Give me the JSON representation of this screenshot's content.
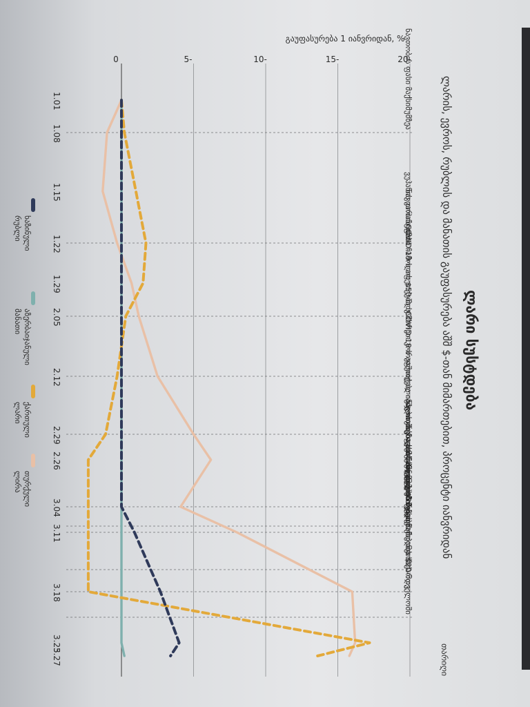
{
  "title": "ლარი სუსტდება",
  "subtitle": "ლარის, ევროს, რუბლის და მანათის გაუფასურება აშშ $-თან მიმართებით, პროცენტი იანვრიდან",
  "ylabel": "გაუფასურება 1 იანვრიდან, %",
  "xlabel": "თარიღი",
  "chart_data": {
    "type": "line",
    "orientation": "rotated-90-clockwise",
    "x": [
      "1.01",
      "1.08",
      "1.15",
      "1.22",
      "1.29",
      "2.05",
      "2.12",
      "2.29",
      "2.26",
      "3.04",
      "3.11",
      "3.18",
      "3.25",
      "3.27"
    ],
    "y_ticks": [
      0,
      5,
      10,
      15,
      20
    ],
    "y_tick_labels": [
      "0",
      "5-",
      "10-",
      "15-",
      "20-"
    ],
    "ylim": [
      0,
      20
    ],
    "grid": true,
    "legend_position": "bottom",
    "series": [
      {
        "name": "ხაზინული რუბლი",
        "color": "#2f3a5a",
        "style": "dashed",
        "values": [
          0,
          0,
          0,
          0,
          0,
          0,
          0,
          0,
          0,
          0,
          0.9,
          2.7,
          4.0,
          3.4
        ]
      },
      {
        "name": "აზერბაიჯანული მანათი",
        "color": "#7fb0ad",
        "style": "solid",
        "values": [
          0,
          0,
          0,
          0,
          0,
          0,
          0,
          0,
          0,
          0,
          0,
          0,
          0,
          0.2
        ]
      },
      {
        "name": "ქართული ლარი",
        "color": "#e3a93a",
        "style": "dashed",
        "values": [
          0,
          0.2,
          1.0,
          1.7,
          1.5,
          0.3,
          -0.3,
          -1.1,
          -2.3,
          -2.3,
          -2.3,
          -2.3,
          17.2,
          13.6
        ]
      },
      {
        "name": "თურქული ლირა",
        "color": "#e9c0a6",
        "style": "solid",
        "values": [
          0,
          -1.0,
          -1.3,
          -0.3,
          0.7,
          1.2,
          2.5,
          5.0,
          6.2,
          4.1,
          8.0,
          16.0,
          16.2,
          15.8
        ]
      }
    ],
    "annotations": [
      {
        "x": "1.08",
        "text": "ნავთობის ფასი მაქსიმუმზეა"
      },
      {
        "x": "1.22",
        "text": "ვუჰანის კარანტინი"
      },
      {
        "x": "2.05",
        "text": "ნავთობის ფასი ჩამოდის $50-მდე"
      },
      {
        "x": "2.12",
        "text": "COVID-19-ს აფეთქება სამხრეთ კორეაში"
      },
      {
        "x": "2.29",
        "text": "COVID-19-ს აფეთქება იტალიაში"
      },
      {
        "x": "3.04",
        "text": "იტალიაში იხურება სასწავლებლები"
      },
      {
        "x": "3.08",
        "text": "ნავთობის ფასი ჩამოდის $30-მდე"
      },
      {
        "x": "3.11",
        "text": "ჯ.ბ.ო აცხადებს პანდემიის შესახებ"
      },
      {
        "x": "3.13",
        "text": "საგანგებო მდგომარეობა ესპანეთში"
      },
      {
        "x": "3.18",
        "text": "ნავთობის ფასი ჩამოდის $20-მდე"
      },
      {
        "x": "3.21",
        "text": "საგანგებო მდგომარეობა საქართველოში"
      }
    ]
  }
}
